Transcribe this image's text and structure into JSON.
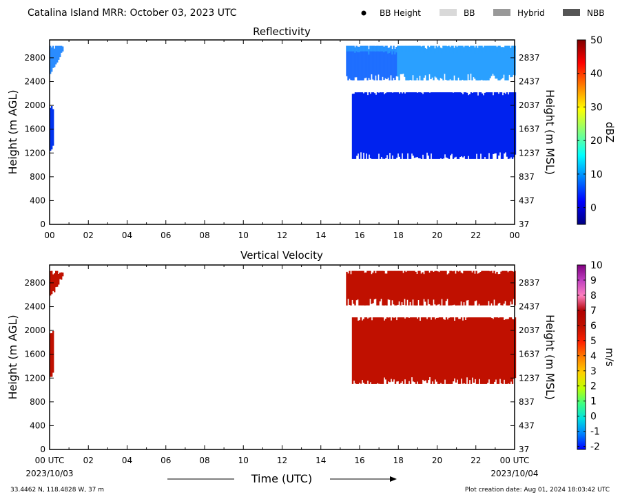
{
  "header": {
    "title": "Catalina Island MRR:  October 03, 2023 UTC",
    "legend": [
      {
        "label": "BB Height",
        "kind": "dot",
        "color": "#000000"
      },
      {
        "label": "BB",
        "kind": "box",
        "color": "#d9d9d9"
      },
      {
        "label": "Hybrid",
        "kind": "box",
        "color": "#999999"
      },
      {
        "label": "NBB",
        "kind": "box",
        "color": "#555555"
      }
    ]
  },
  "footer": {
    "location": "33.4462 N, 118.4828 W, 37 m",
    "creation": "Plot creation date: Aug 01, 2024 18:03:42 UTC",
    "xlabel": "Time (UTC)",
    "start_date": "2023/10/03",
    "end_date": "2023/10/04"
  },
  "chart_data": [
    {
      "type": "heatmap",
      "title": "Reflectivity",
      "ylabel": "Height (m AGL)",
      "ylabel_right": "Height (m MSL)",
      "xlim": [
        0,
        24
      ],
      "ylim": [
        0,
        3100
      ],
      "x_ticks": [
        "00",
        "02",
        "04",
        "06",
        "08",
        "10",
        "12",
        "14",
        "16",
        "18",
        "20",
        "22",
        "00"
      ],
      "y_ticks": [
        "0",
        "400",
        "800",
        "1200",
        "1600",
        "2000",
        "2400",
        "2800"
      ],
      "y_ticks_right": [
        "37",
        "437",
        "837",
        "1237",
        "1637",
        "2037",
        "2437",
        "2837"
      ],
      "colorbar": {
        "label": "dBZ",
        "range": [
          -5,
          50
        ],
        "ticks": [
          "0",
          "10",
          "20",
          "30",
          "40",
          "50"
        ],
        "tick_values": [
          0,
          10,
          20,
          30,
          40,
          50
        ],
        "colors": [
          "#00007f",
          "#0000ff",
          "#0080ff",
          "#00ffff",
          "#80ff80",
          "#ffff00",
          "#ff8000",
          "#ff0000",
          "#7f0000"
        ]
      },
      "regions": [
        {
          "t0": 0.0,
          "t1": 0.65,
          "h0": 2520,
          "h1": 3000,
          "color": "#2a8cff",
          "edge": "top-left"
        },
        {
          "t0": 0.0,
          "t1": 0.2,
          "h0": 1220,
          "h1": 1990,
          "color": "#0033ee"
        },
        {
          "t0": 15.3,
          "t1": 24.0,
          "h0": 2420,
          "h1": 3000,
          "color": "#1f6fff",
          "gradient": "#2aa0ff"
        },
        {
          "t0": 15.6,
          "t1": 24.0,
          "h0": 1100,
          "h1": 2220,
          "color": "#0022ee"
        }
      ]
    },
    {
      "type": "heatmap",
      "title": "Vertical Velocity",
      "ylabel": "Height (m AGL)",
      "ylabel_right": "Height (m MSL)",
      "xlim": [
        0,
        24
      ],
      "ylim": [
        0,
        3100
      ],
      "x_ticks": [
        "00 UTC",
        "02",
        "04",
        "06",
        "08",
        "10",
        "12",
        "14",
        "16",
        "18",
        "20",
        "22",
        "00 UTC"
      ],
      "y_ticks": [
        "0",
        "400",
        "800",
        "1200",
        "1600",
        "2000",
        "2400",
        "2800"
      ],
      "y_ticks_right": [
        "37",
        "437",
        "837",
        "1237",
        "1637",
        "2037",
        "2437",
        "2837"
      ],
      "colorbar": {
        "label": "m/s",
        "range": [
          -2.2,
          10
        ],
        "ticks": [
          "-2",
          "-1",
          "0",
          "1",
          "2",
          "3",
          "4",
          "5",
          "6",
          "7",
          "8",
          "9",
          "10"
        ],
        "tick_values": [
          -2,
          -1,
          0,
          1,
          2,
          3,
          4,
          5,
          6,
          7,
          8,
          9,
          10
        ],
        "colors": [
          "#0000ff",
          "#0080ff",
          "#00e0e0",
          "#40ff80",
          "#c0ff00",
          "#ffd000",
          "#ff8000",
          "#ff2000",
          "#c01000",
          "#b00000",
          "#ff80c0",
          "#c040c0",
          "#800080"
        ]
      },
      "regions": [
        {
          "t0": 0.0,
          "t1": 0.65,
          "h0": 2520,
          "h1": 3000,
          "color": "#c01000",
          "edge": "top-left"
        },
        {
          "t0": 0.0,
          "t1": 0.2,
          "h0": 1220,
          "h1": 1990,
          "color": "#c01000"
        },
        {
          "t0": 15.3,
          "t1": 24.0,
          "h0": 2420,
          "h1": 3000,
          "color": "#c01000"
        },
        {
          "t0": 15.6,
          "t1": 24.0,
          "h0": 1100,
          "h1": 2220,
          "color": "#c01000"
        }
      ]
    }
  ]
}
